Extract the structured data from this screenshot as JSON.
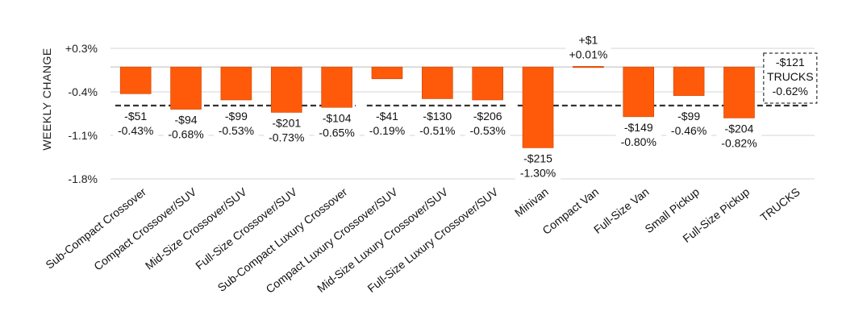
{
  "chart_data": {
    "type": "bar",
    "ylabel": "WEEKLY CHANGE",
    "ylim": [
      -1.8,
      0.3
    ],
    "yticks": [
      0.3,
      -0.4,
      -1.1,
      -1.8
    ],
    "ytick_labels": [
      "+0.3%",
      "-0.4%",
      "-1.1%",
      "-1.8%"
    ],
    "grid": true,
    "bar_color": "#ff5a0a",
    "categories": [
      "Sub-Compact Crossover",
      "Compact Crossover/SUV",
      "Mid-Size Crossover/SUV",
      "Full-Size Crossover/SUV",
      "Sub-Compact Luxury Crossover",
      "Compact Luxury Crossover/SUV",
      "Mid-Size Luxury Crossover/SUV",
      "Full-Size Luxury Crossover/SUV",
      "Minivan",
      "Compact Van",
      "Full-Size Van",
      "Small Pickup",
      "Full-Size Pickup",
      "TRUCKS"
    ],
    "values": [
      -0.43,
      -0.68,
      -0.53,
      -0.73,
      -0.65,
      -0.19,
      -0.51,
      -0.53,
      -1.3,
      0.01,
      -0.8,
      -0.46,
      -0.82,
      null
    ],
    "dollar_labels": [
      "-$51",
      "-$94",
      "-$99",
      "-$201",
      "-$104",
      "-$41",
      "-$130",
      "-$206",
      "-$215",
      "+$1",
      "-$149",
      "-$99",
      "-$204",
      ""
    ],
    "percent_labels": [
      "-0.43%",
      "-0.68%",
      "-0.53%",
      "-0.73%",
      "-0.65%",
      "-0.19%",
      "-0.51%",
      "-0.53%",
      "-1.30%",
      "+0.01%",
      "-0.80%",
      "-0.46%",
      "-0.82%",
      ""
    ],
    "reference_lines": [
      {
        "value": -0.62,
        "from_index": 0,
        "to_index": 4
      },
      {
        "value": -0.62,
        "from_index": 5,
        "to_index": 7
      },
      {
        "value": -0.62,
        "from_index": 8,
        "to_index": 13
      }
    ],
    "callout": {
      "dollar": "-$121",
      "name": "TRUCKS",
      "percent": "-0.62%"
    }
  }
}
